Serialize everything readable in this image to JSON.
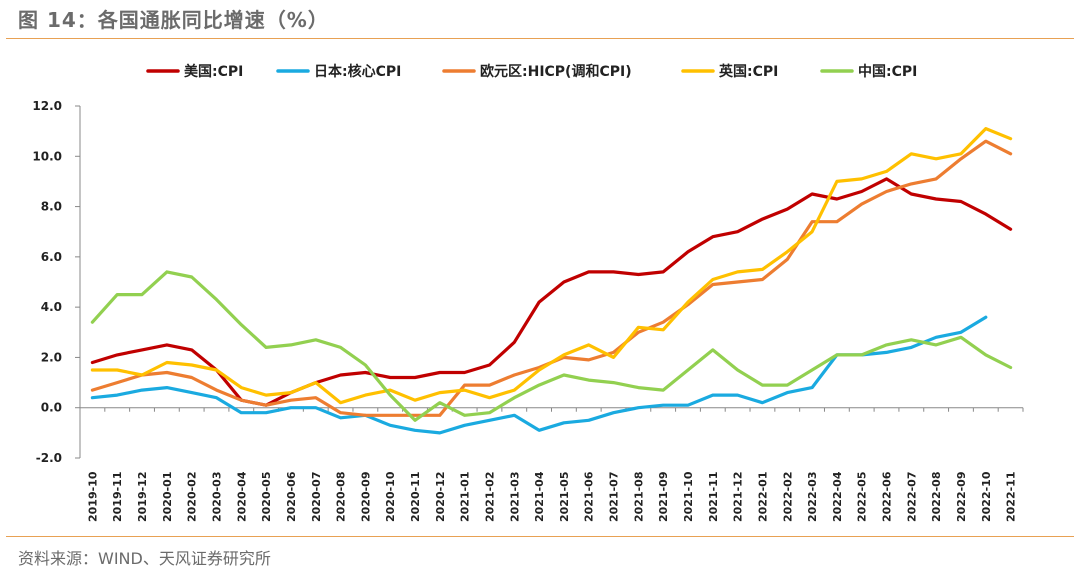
{
  "header": {
    "title": "图 14：各国通胀同比增速（%）"
  },
  "footer": {
    "source": "资料来源：WIND、天风证券研究所"
  },
  "chart_data": {
    "type": "line",
    "title": "图 14：各国通胀同比增速（%）",
    "xlabel": "",
    "ylabel": "",
    "ylim": [
      -2.0,
      12.0
    ],
    "yticks": [
      12.0,
      10.0,
      8.0,
      6.0,
      4.0,
      2.0,
      0.0,
      -2.0
    ],
    "ytick_labels": [
      "12.0",
      "10.0",
      "8.0",
      "6.0",
      "4.0",
      "2.0",
      "0.0",
      "-2.0"
    ],
    "grid": false,
    "legend_position": "top",
    "categories": [
      "2019-10",
      "2019-11",
      "2019-12",
      "2020-01",
      "2020-02",
      "2020-03",
      "2020-04",
      "2020-05",
      "2020-06",
      "2020-07",
      "2020-08",
      "2020-09",
      "2020-10",
      "2020-11",
      "2020-12",
      "2021-01",
      "2021-02",
      "2021-03",
      "2021-04",
      "2021-05",
      "2021-06",
      "2021-07",
      "2021-08",
      "2021-09",
      "2021-10",
      "2021-11",
      "2021-12",
      "2022-01",
      "2022-02",
      "2022-03",
      "2022-04",
      "2022-05",
      "2022-06",
      "2022-07",
      "2022-08",
      "2022-09",
      "2022-10",
      "2022-11"
    ],
    "series": [
      {
        "name": "美国:CPI",
        "color": "#c00000",
        "values": [
          1.8,
          2.1,
          2.3,
          2.5,
          2.3,
          1.5,
          0.3,
          0.1,
          0.6,
          1.0,
          1.3,
          1.4,
          1.2,
          1.2,
          1.4,
          1.4,
          1.7,
          2.6,
          4.2,
          5.0,
          5.4,
          5.4,
          5.3,
          5.4,
          6.2,
          6.8,
          7.0,
          7.5,
          7.9,
          8.5,
          8.3,
          8.6,
          9.1,
          8.5,
          8.3,
          8.2,
          7.7,
          7.1
        ]
      },
      {
        "name": "日本:核心CPI",
        "color": "#1aaae0",
        "values": [
          0.4,
          0.5,
          0.7,
          0.8,
          0.6,
          0.4,
          -0.2,
          -0.2,
          0.0,
          0.0,
          -0.4,
          -0.3,
          -0.7,
          -0.9,
          -1.0,
          -0.7,
          -0.5,
          -0.3,
          -0.9,
          -0.6,
          -0.5,
          -0.2,
          0.0,
          0.1,
          0.1,
          0.5,
          0.5,
          0.2,
          0.6,
          0.8,
          2.1,
          2.1,
          2.2,
          2.4,
          2.8,
          3.0,
          3.6,
          null
        ]
      },
      {
        "name": "欧元区:HICP(调和CPI)",
        "color": "#ed7d31",
        "values": [
          0.7,
          1.0,
          1.3,
          1.4,
          1.2,
          0.7,
          0.3,
          0.1,
          0.3,
          0.4,
          -0.2,
          -0.3,
          -0.3,
          -0.3,
          -0.3,
          0.9,
          0.9,
          1.3,
          1.6,
          2.0,
          1.9,
          2.2,
          3.0,
          3.4,
          4.1,
          4.9,
          5.0,
          5.1,
          5.9,
          7.4,
          7.4,
          8.1,
          8.6,
          8.9,
          9.1,
          9.9,
          10.6,
          10.1
        ]
      },
      {
        "name": "英国:CPI",
        "color": "#ffc000",
        "values": [
          1.5,
          1.5,
          1.3,
          1.8,
          1.7,
          1.5,
          0.8,
          0.5,
          0.6,
          1.0,
          0.2,
          0.5,
          0.7,
          0.3,
          0.6,
          0.7,
          0.4,
          0.7,
          1.5,
          2.1,
          2.5,
          2.0,
          3.2,
          3.1,
          4.2,
          5.1,
          5.4,
          5.5,
          6.2,
          7.0,
          9.0,
          9.1,
          9.4,
          10.1,
          9.9,
          10.1,
          11.1,
          10.7
        ]
      },
      {
        "name": "中国:CPI",
        "color": "#92d050",
        "values": [
          3.4,
          4.5,
          4.5,
          5.4,
          5.2,
          4.3,
          3.3,
          2.4,
          2.5,
          2.7,
          2.4,
          1.7,
          0.5,
          -0.5,
          0.2,
          -0.3,
          -0.2,
          0.4,
          0.9,
          1.3,
          1.1,
          1.0,
          0.8,
          0.7,
          1.5,
          2.3,
          1.5,
          0.9,
          0.9,
          1.5,
          2.1,
          2.1,
          2.5,
          2.7,
          2.5,
          2.8,
          2.1,
          1.6
        ]
      }
    ]
  }
}
